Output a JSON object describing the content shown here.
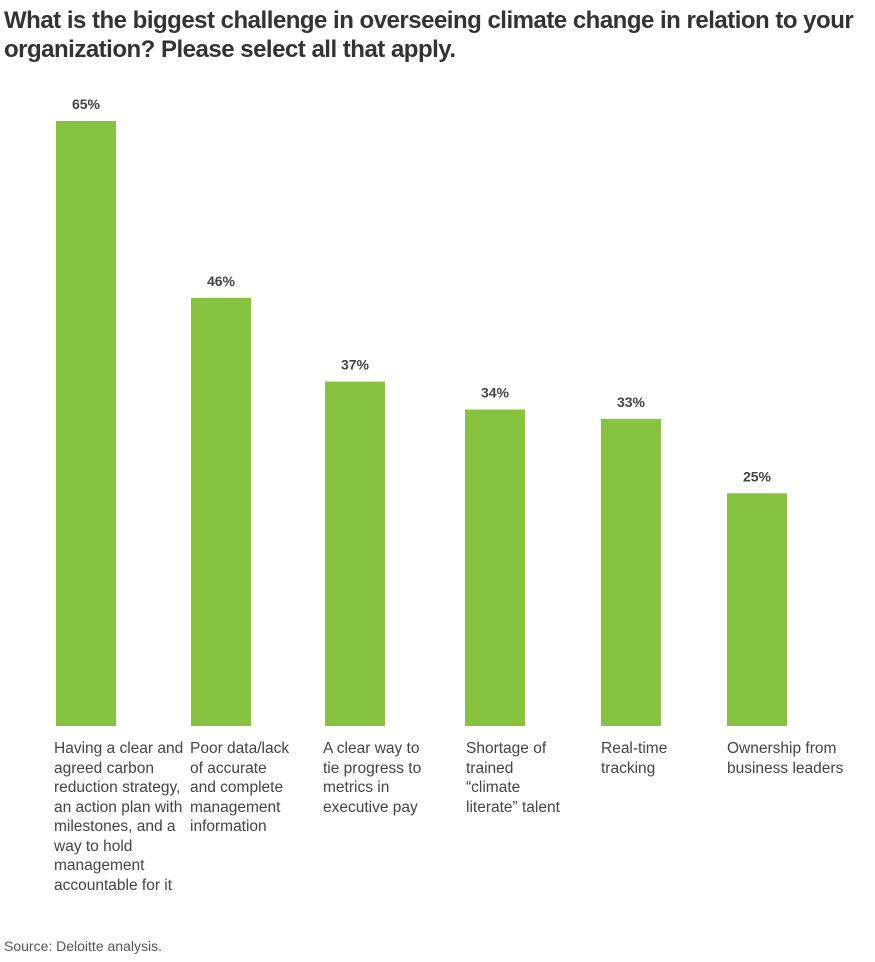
{
  "chart_data": {
    "type": "bar",
    "title": "What is the biggest challenge in overseeing climate change in relation to your organization? Please select all that apply.",
    "categories": [
      "Having a clear and agreed carbon reduction strategy, an action plan with milestones, and a way to hold management accountable for it",
      "Poor data/lack of accurate and complete management information",
      "A clear way to tie progress to metrics in executive pay",
      "Shortage of trained “climate literate” talent",
      "Real-time tracking",
      "Ownership from business leaders"
    ],
    "values": [
      65,
      46,
      37,
      34,
      33,
      25
    ],
    "value_labels": [
      "65%",
      "46%",
      "37%",
      "34%",
      "33%",
      "25%"
    ],
    "color": "#86c440",
    "source": "Source: Deloitte analysis."
  }
}
